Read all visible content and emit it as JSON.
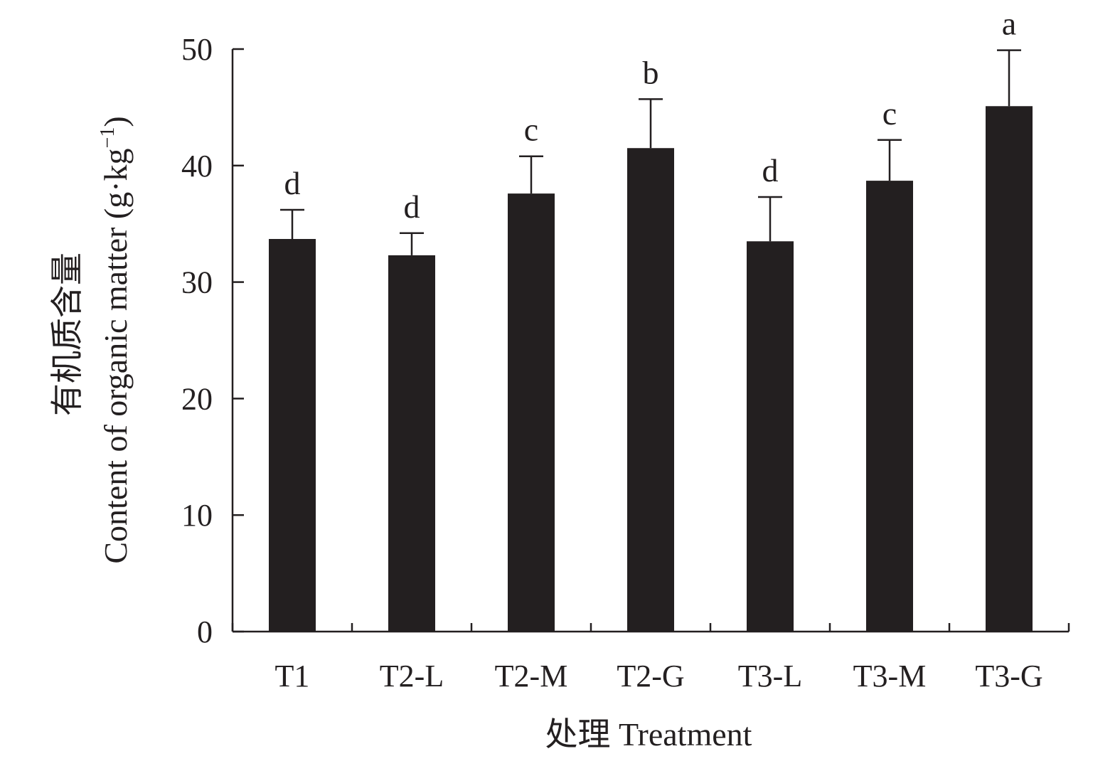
{
  "chart_data": {
    "type": "bar",
    "categories": [
      "T1",
      "T2-L",
      "T2-M",
      "T2-G",
      "T3-L",
      "T3-M",
      "T3-G"
    ],
    "values": [
      33.7,
      32.3,
      37.6,
      41.5,
      33.5,
      38.7,
      45.1
    ],
    "errors": [
      2.5,
      1.9,
      3.2,
      4.2,
      3.8,
      3.5,
      4.8
    ],
    "significance": [
      "d",
      "d",
      "c",
      "b",
      "d",
      "c",
      "a"
    ],
    "xlabel": "处理 Treatment",
    "ylabel_line1": "有机质含量",
    "ylabel_line2_main": "Content of organic matter (g·kg",
    "ylabel_line2_sup": "−1",
    "ylabel_line2_end": ")",
    "ylim": [
      0,
      50
    ],
    "yticks": [
      0,
      10,
      20,
      30,
      40,
      50
    ],
    "bar_color": "#231f20",
    "grid": false
  }
}
